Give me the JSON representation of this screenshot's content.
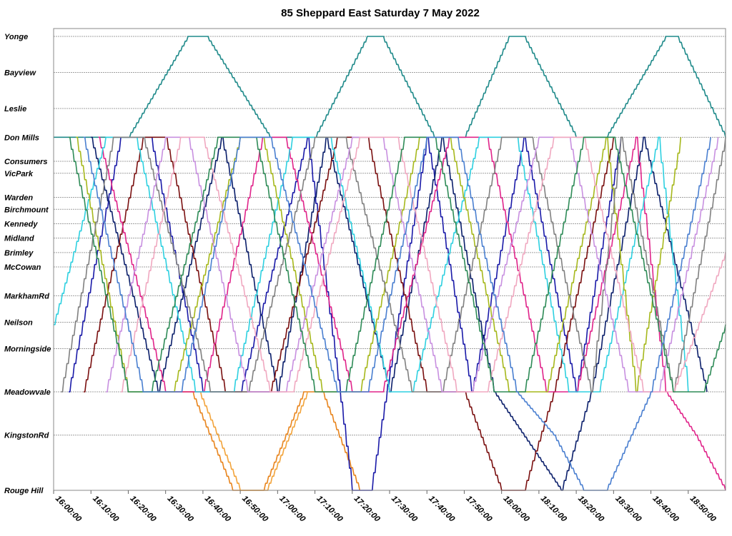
{
  "chart_data": {
    "type": "line",
    "title": "85 Sheppard East Saturday 7 May 2022",
    "xlim": [
      "16:00:00",
      "19:00:00"
    ],
    "x_ticks": [
      "16:00:00",
      "16:10:00",
      "16:20:00",
      "16:30:00",
      "16:40:00",
      "16:50:00",
      "17:00:00",
      "17:10:00",
      "17:20:00",
      "17:30:00",
      "17:40:00",
      "17:50:00",
      "18:00:00",
      "18:10:00",
      "18:20:00",
      "18:30:00",
      "18:40:00",
      "18:50:00"
    ],
    "stops": [
      {
        "name": "Yonge",
        "km": 0.0
      },
      {
        "name": "Bayview",
        "km": 1.5
      },
      {
        "name": "Leslie",
        "km": 3.0
      },
      {
        "name": "Don Mills",
        "km": 4.2
      },
      {
        "name": "Consumers",
        "km": 5.2
      },
      {
        "name": "VicPark",
        "km": 5.7
      },
      {
        "name": "Warden",
        "km": 6.7
      },
      {
        "name": "Birchmount",
        "km": 7.2
      },
      {
        "name": "Kennedy",
        "km": 7.8
      },
      {
        "name": "Midland",
        "km": 8.4
      },
      {
        "name": "Brimley",
        "km": 9.0
      },
      {
        "name": "McCowan",
        "km": 9.6
      },
      {
        "name": "MarkhamRd",
        "km": 10.8
      },
      {
        "name": "Neilson",
        "km": 11.9
      },
      {
        "name": "Morningside",
        "km": 13.0
      },
      {
        "name": "Meadowvale",
        "km": 14.8
      },
      {
        "name": "KingstonRd",
        "km": 16.6
      },
      {
        "name": "Rouge Hill",
        "km": 18.9
      }
    ],
    "series": [
      {
        "color": "#1f8a8a",
        "points": [
          [
            "16:00:00",
            4.2
          ],
          [
            "16:20:00",
            4.2
          ],
          [
            "16:36:00",
            0.0
          ],
          [
            "16:41:00",
            0.0
          ],
          [
            "16:58:00",
            4.2
          ],
          [
            "17:10:00",
            4.2
          ],
          [
            "17:24:00",
            0.0
          ],
          [
            "17:28:00",
            0.0
          ],
          [
            "17:42:00",
            4.2
          ],
          [
            "17:50:00",
            4.2
          ],
          [
            "18:02:00",
            0.0
          ],
          [
            "18:06:00",
            0.0
          ],
          [
            "18:20:00",
            4.2
          ],
          [
            "18:28:00",
            4.2
          ],
          [
            "18:44:00",
            0.0
          ],
          [
            "18:47:00",
            0.0
          ],
          [
            "19:00:00",
            4.2
          ]
        ]
      },
      {
        "color": "#e8841c",
        "points": [
          [
            "16:28:00",
            14.8
          ],
          [
            "16:37:00",
            14.8
          ],
          [
            "16:48:00",
            18.9
          ],
          [
            "16:56:00",
            18.9
          ],
          [
            "17:07:00",
            14.8
          ],
          [
            "17:12:00",
            14.8
          ],
          [
            "17:22:00",
            18.9
          ]
        ]
      },
      {
        "color": "#f2a33a",
        "points": [
          [
            "16:30:00",
            14.8
          ],
          [
            "16:39:00",
            14.8
          ],
          [
            "16:50:00",
            18.9
          ],
          [
            "16:57:00",
            18.9
          ],
          [
            "17:08:00",
            14.8
          ]
        ]
      },
      {
        "color": "#1a1aa8",
        "points": [
          [
            "16:04:00",
            14.8
          ],
          [
            "16:18:00",
            4.2
          ],
          [
            "16:26:00",
            4.2
          ],
          [
            "16:40:00",
            14.8
          ],
          [
            "16:50:00",
            14.8
          ],
          [
            "17:08:00",
            4.2
          ],
          [
            "17:20:00",
            18.9
          ],
          [
            "17:25:00",
            18.9
          ],
          [
            "17:40:00",
            4.2
          ],
          [
            "17:52:00",
            14.8
          ],
          [
            "18:06:00",
            4.2
          ],
          [
            "18:20:00",
            14.8
          ],
          [
            "18:32:00",
            4.2
          ]
        ]
      },
      {
        "color": "#0b1f6b",
        "points": [
          [
            "16:10:00",
            4.2
          ],
          [
            "16:28:00",
            14.8
          ],
          [
            "16:45:00",
            4.2
          ],
          [
            "17:00:00",
            14.8
          ],
          [
            "17:13:00",
            4.2
          ],
          [
            "17:30:00",
            14.8
          ],
          [
            "17:44:00",
            4.2
          ],
          [
            "17:58:00",
            14.8
          ],
          [
            "18:16:00",
            18.9
          ],
          [
            "18:24:00",
            14.8
          ],
          [
            "18:38:00",
            4.2
          ],
          [
            "18:55:00",
            14.8
          ]
        ]
      },
      {
        "color": "#7a1010",
        "points": [
          [
            "16:08:00",
            14.8
          ],
          [
            "16:24:00",
            4.2
          ],
          [
            "16:30:00",
            4.2
          ],
          [
            "16:46:00",
            14.8
          ],
          [
            "16:58:00",
            14.8
          ],
          [
            "17:16:00",
            4.2
          ],
          [
            "17:24:00",
            4.2
          ],
          [
            "17:40:00",
            14.8
          ],
          [
            "17:50:00",
            14.8
          ],
          [
            "18:00:00",
            18.9
          ],
          [
            "18:06:00",
            18.9
          ],
          [
            "18:14:00",
            14.8
          ],
          [
            "18:30:00",
            4.2
          ]
        ]
      },
      {
        "color": "#e0248a",
        "points": [
          [
            "16:12:00",
            4.2
          ],
          [
            "16:30:00",
            14.8
          ],
          [
            "16:40:00",
            14.8
          ],
          [
            "16:56:00",
            4.2
          ],
          [
            "17:02:00",
            4.2
          ],
          [
            "17:20:00",
            14.8
          ],
          [
            "17:28:00",
            14.8
          ],
          [
            "17:46:00",
            4.2
          ],
          [
            "17:56:00",
            4.2
          ],
          [
            "18:12:00",
            14.8
          ],
          [
            "18:20:00",
            14.8
          ],
          [
            "18:36:00",
            4.2
          ],
          [
            "18:44:00",
            14.8
          ],
          [
            "18:52:00",
            16.6
          ],
          [
            "19:00:00",
            18.9
          ]
        ]
      },
      {
        "color": "#2ed0e0",
        "points": [
          [
            "16:00:00",
            12.0
          ],
          [
            "16:14:00",
            4.2
          ],
          [
            "16:22:00",
            4.2
          ],
          [
            "16:38:00",
            14.8
          ],
          [
            "16:48:00",
            14.8
          ],
          [
            "17:04:00",
            4.2
          ],
          [
            "17:14:00",
            4.2
          ],
          [
            "17:30:00",
            14.8
          ],
          [
            "17:36:00",
            14.8
          ],
          [
            "17:54:00",
            4.2
          ],
          [
            "18:04:00",
            4.2
          ],
          [
            "18:18:00",
            14.8
          ],
          [
            "18:26:00",
            14.8
          ],
          [
            "18:42:00",
            4.2
          ],
          [
            "18:50:00",
            14.8
          ]
        ]
      },
      {
        "color": "#a6b81c",
        "points": [
          [
            "16:06:00",
            4.2
          ],
          [
            "16:20:00",
            14.8
          ],
          [
            "16:32:00",
            14.8
          ],
          [
            "16:50:00",
            4.2
          ],
          [
            "16:56:00",
            4.2
          ],
          [
            "17:12:00",
            14.8
          ],
          [
            "17:22:00",
            14.8
          ],
          [
            "17:38:00",
            4.2
          ],
          [
            "17:46:00",
            4.2
          ],
          [
            "18:02:00",
            14.8
          ],
          [
            "18:12:00",
            14.8
          ],
          [
            "18:28:00",
            4.2
          ],
          [
            "18:36:00",
            14.8
          ],
          [
            "18:48:00",
            4.2
          ]
        ]
      },
      {
        "color": "#808080",
        "points": [
          [
            "16:02:00",
            14.8
          ],
          [
            "16:16:00",
            4.2
          ],
          [
            "16:24:00",
            4.2
          ],
          [
            "16:42:00",
            14.8
          ],
          [
            "16:52:00",
            14.8
          ],
          [
            "17:10:00",
            4.2
          ],
          [
            "17:18:00",
            4.2
          ],
          [
            "17:36:00",
            14.8
          ],
          [
            "17:44:00",
            14.8
          ],
          [
            "18:00:00",
            4.2
          ],
          [
            "18:08:00",
            4.2
          ],
          [
            "18:24:00",
            14.8
          ],
          [
            "18:32:00",
            4.2
          ],
          [
            "18:46:00",
            14.8
          ],
          [
            "19:00:00",
            4.2
          ]
        ]
      },
      {
        "color": "#c890e0",
        "points": [
          [
            "16:14:00",
            14.8
          ],
          [
            "16:30:00",
            4.2
          ],
          [
            "16:36:00",
            4.2
          ],
          [
            "16:52:00",
            14.8
          ],
          [
            "17:02:00",
            14.8
          ],
          [
            "17:20:00",
            4.2
          ],
          [
            "17:28:00",
            4.2
          ],
          [
            "17:44:00",
            14.8
          ],
          [
            "17:52:00",
            14.8
          ],
          [
            "18:10:00",
            4.2
          ],
          [
            "18:18:00",
            4.2
          ],
          [
            "18:34:00",
            14.8
          ],
          [
            "18:42:00",
            14.8
          ],
          [
            "18:58:00",
            4.2
          ]
        ]
      },
      {
        "color": "#f0a8c0",
        "points": [
          [
            "16:18:00",
            14.8
          ],
          [
            "16:34:00",
            4.2
          ],
          [
            "16:40:00",
            4.2
          ],
          [
            "16:58:00",
            14.8
          ],
          [
            "17:04:00",
            14.8
          ],
          [
            "17:22:00",
            4.2
          ],
          [
            "17:32:00",
            4.2
          ],
          [
            "17:48:00",
            14.8
          ],
          [
            "17:56:00",
            14.8
          ],
          [
            "18:14:00",
            4.2
          ],
          [
            "18:22:00",
            4.2
          ],
          [
            "18:38:00",
            14.8
          ],
          [
            "18:46:00",
            14.8
          ],
          [
            "19:00:00",
            9.0
          ]
        ]
      },
      {
        "color": "#2e8b57",
        "points": [
          [
            "16:04:00",
            4.2
          ],
          [
            "16:20:00",
            14.8
          ],
          [
            "16:26:00",
            14.8
          ],
          [
            "16:44:00",
            4.2
          ],
          [
            "16:54:00",
            4.2
          ],
          [
            "17:10:00",
            14.8
          ],
          [
            "17:18:00",
            14.8
          ],
          [
            "17:34:00",
            4.2
          ],
          [
            "17:42:00",
            4.2
          ],
          [
            "17:58:00",
            14.8
          ],
          [
            "18:06:00",
            14.8
          ],
          [
            "18:22:00",
            4.2
          ],
          [
            "18:30:00",
            4.2
          ],
          [
            "18:46:00",
            14.8
          ],
          [
            "18:54:00",
            14.8
          ],
          [
            "19:00:00",
            12.0
          ]
        ]
      },
      {
        "color": "#4a7fd0",
        "points": [
          [
            "16:08:00",
            4.2
          ],
          [
            "16:24:00",
            14.8
          ],
          [
            "16:34:00",
            14.8
          ],
          [
            "16:50:00",
            4.2
          ],
          [
            "16:58:00",
            4.2
          ],
          [
            "17:16:00",
            14.8
          ],
          [
            "17:24:00",
            14.8
          ],
          [
            "17:40:00",
            4.2
          ],
          [
            "17:48:00",
            4.2
          ],
          [
            "18:04:00",
            14.8
          ],
          [
            "18:14:00",
            16.6
          ],
          [
            "18:22:00",
            18.9
          ],
          [
            "18:28:00",
            18.9
          ],
          [
            "18:40:00",
            14.8
          ],
          [
            "18:56:00",
            4.2
          ]
        ]
      }
    ]
  }
}
